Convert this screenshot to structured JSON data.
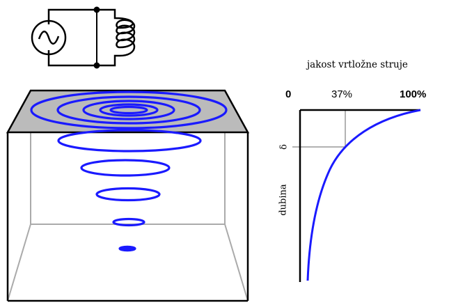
{
  "graph": {
    "title": "jakost vrtložne struje",
    "tick_zero": "0",
    "tick_37": "37%",
    "tick_100": "100%",
    "delta_label": "δ",
    "depth_label": "dubina"
  },
  "colors": {
    "eddy_current": "#1a1aff",
    "plate_surface": "#bbbbbb",
    "box_edges": "#000000",
    "hidden_edges": "#aaaaaa",
    "guide_lines": "#999999"
  }
}
